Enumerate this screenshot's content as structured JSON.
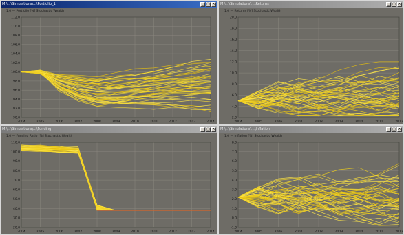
{
  "windows": [
    {
      "id": "top-left",
      "title": "M:\\...\\Simulations\\...\\Portfolio_1",
      "caption": "1.0 — Portfolio [%] Stochastic Wealth",
      "active": true,
      "chart_data": {
        "type": "line",
        "x": [
          2004,
          2005,
          2006,
          2007,
          2008,
          2009,
          2010,
          2011,
          2012,
          2013,
          2014
        ],
        "x_tick_labels": [
          "2004",
          "2005",
          "2006",
          "2007",
          "2008",
          "2009",
          "2010",
          "2011",
          "2012",
          "2013",
          "2014"
        ],
        "ylim": [
          90.0,
          112.0
        ],
        "y_tick_labels": [
          "112.0",
          "110.0",
          "108.0",
          "106.0",
          "104.0",
          "102.0",
          "100.0",
          "98.0",
          "96.0",
          "94.0",
          "92.0",
          "90.0"
        ],
        "series_count": 45,
        "line_color": "#f2d21a",
        "grid": true
      }
    },
    {
      "id": "top-right",
      "title": "M:\\...\\Simulations\\...\\Returns",
      "caption": "1.0 — Returns [%] Stochastic Wealth",
      "active": false,
      "chart_data": {
        "type": "line",
        "x": [
          2004,
          2005,
          2006,
          2007,
          2008,
          2009,
          2010,
          2011,
          2012
        ],
        "x_tick_labels": [
          "2004",
          "2005",
          "2006",
          "2007",
          "2008",
          "2009",
          "2010",
          "2011",
          "2012"
        ],
        "ylim": [
          2.0,
          20.0
        ],
        "y_tick_labels": [
          "20.0",
          "18.0",
          "16.0",
          "14.0",
          "12.0",
          "10.0",
          "8.0",
          "6.0",
          "4.0",
          "2.0"
        ],
        "series_count": 45,
        "line_color": "#f2d21a",
        "grid": true
      }
    },
    {
      "id": "bottom-left",
      "title": "M:\\...\\Simulations\\...\\Funding",
      "caption": "1.0 — Funding Ratio [%] Stochastic Wealth",
      "active": false,
      "chart_data": {
        "type": "line",
        "x": [
          2004,
          2005,
          2006,
          2007,
          2008,
          2009,
          2010,
          2011,
          2012,
          2013,
          2014
        ],
        "x_tick_labels": [
          "2004",
          "2005",
          "2006",
          "2007",
          "2008",
          "2009",
          "2010",
          "2011",
          "2012",
          "2013",
          "2014"
        ],
        "ylim": [
          20.0,
          110.0
        ],
        "y_tick_labels": [
          "110.0",
          "100.0",
          "90.0",
          "80.0",
          "70.0",
          "60.0",
          "50.0",
          "40.0",
          "30.0",
          "20.0"
        ],
        "series_count": 40,
        "line_color": "#f2d21a",
        "terminal_line_color": "#d4642a",
        "grid": true
      }
    },
    {
      "id": "bottom-right",
      "title": "M:\\...\\Simulations\\...\\Inflation",
      "caption": "1.0 — Inflation [%] Stochastic Wealth",
      "active": false,
      "chart_data": {
        "type": "line",
        "x": [
          2004,
          2005,
          2006,
          2007,
          2008,
          2009,
          2010,
          2011,
          2012
        ],
        "x_tick_labels": [
          "2004",
          "2005",
          "2006",
          "2007",
          "2008",
          "2009",
          "2010",
          "2011",
          "2012"
        ],
        "ylim": [
          -1.0,
          8.0
        ],
        "y_tick_labels": [
          "8.0",
          "7.0",
          "6.0",
          "5.0",
          "4.0",
          "3.0",
          "2.0",
          "1.0",
          "0.0",
          "-1.0"
        ],
        "series_count": 45,
        "line_color": "#f2d21a",
        "grid": true
      }
    }
  ]
}
